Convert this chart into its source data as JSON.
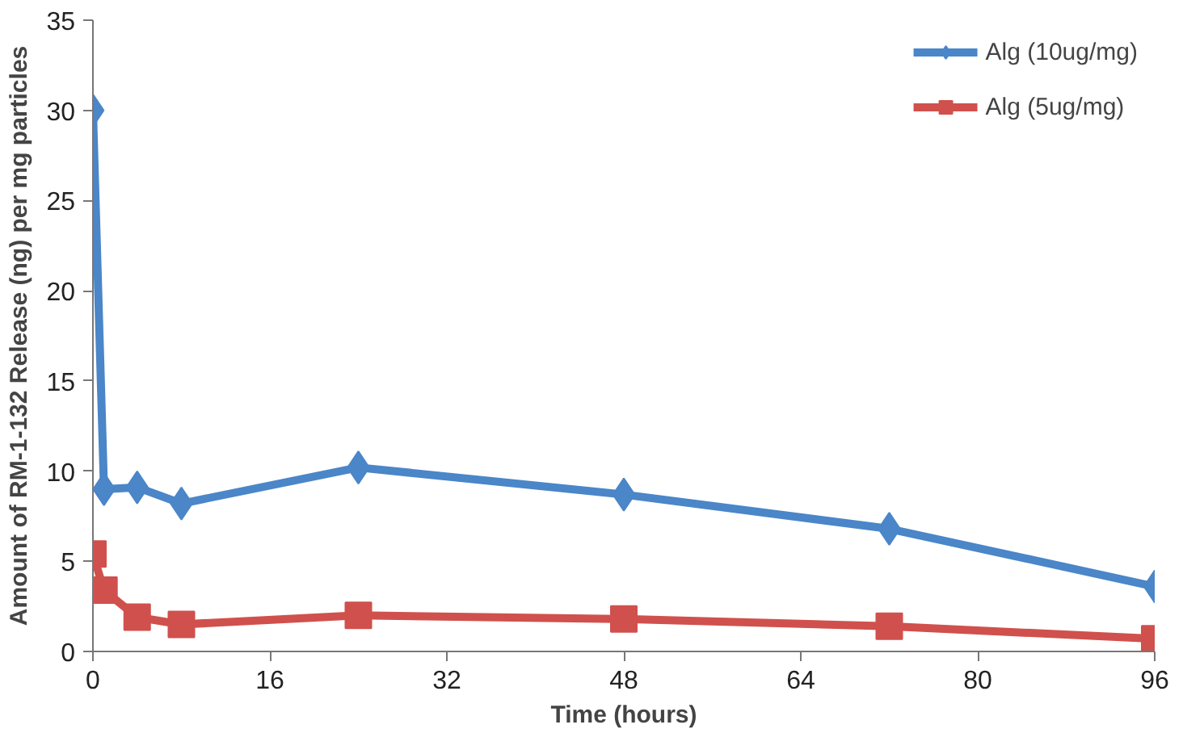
{
  "chart_data": {
    "type": "line",
    "xlabel": "Time (hours)",
    "ylabel": "Amount of RM-1-132 Release (ng) per mg particles",
    "x": [
      0,
      1,
      4,
      8,
      24,
      48,
      72,
      96
    ],
    "series": [
      {
        "name": "Alg (10ug/mg)",
        "color": "#4a86c8",
        "marker": "diamond",
        "values": [
          30,
          9.0,
          9.1,
          8.2,
          10.2,
          8.7,
          6.8,
          3.6
        ]
      },
      {
        "name": "Alg (5ug/mg)",
        "color": "#d0504d",
        "marker": "square",
        "values": [
          5.4,
          3.4,
          1.9,
          1.5,
          2.0,
          1.8,
          1.4,
          0.7
        ]
      }
    ],
    "xlim": [
      0,
      96
    ],
    "xticks": [
      0,
      16,
      32,
      48,
      64,
      80,
      96
    ],
    "ylim": [
      0,
      35
    ],
    "yticks": [
      0,
      5,
      10,
      15,
      20,
      25,
      30,
      35
    ],
    "grid": false,
    "legend": "top right",
    "line_style": "solid"
  }
}
